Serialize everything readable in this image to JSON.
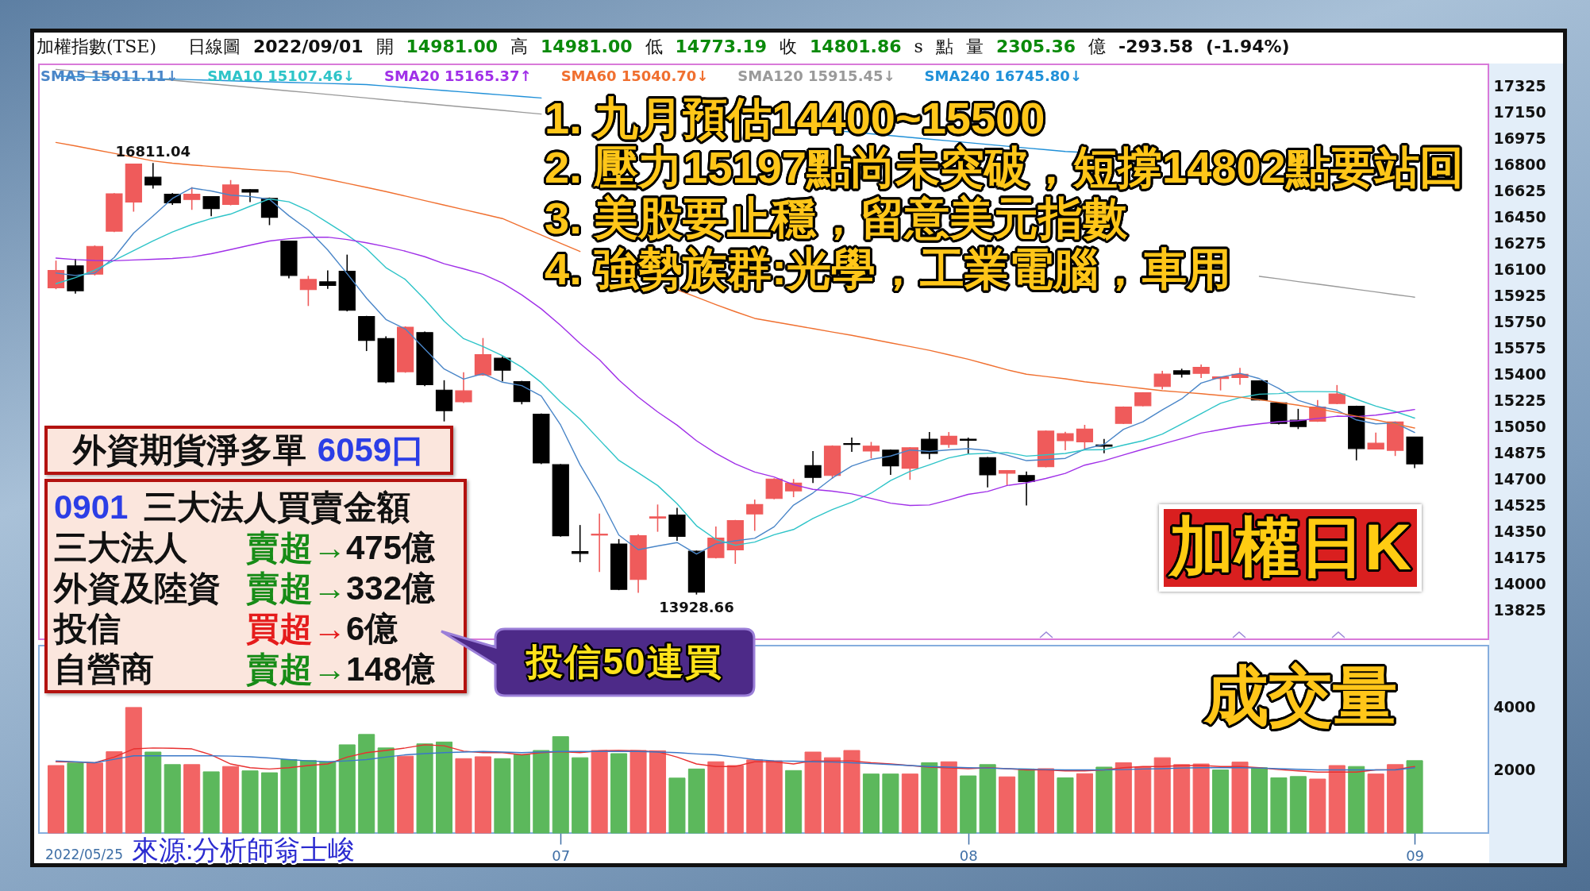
{
  "chart_data": [
    {
      "type": "candlestick",
      "title": "加權指數(TSE)",
      "subtitle": "日線圖 2022/09/01 開 14981.00 高 14981.00 低 14773.19 收 14801.86 s 點 量 2305.36 億 -293.58 (-1.94%)",
      "categories": [
        null,
        null,
        null,
        null,
        null,
        null,
        null,
        null,
        null,
        null,
        null,
        null,
        null,
        null,
        null,
        null,
        null,
        null,
        null,
        null,
        null,
        null,
        null,
        null,
        null,
        null,
        "07",
        null,
        null,
        null,
        null,
        null,
        null,
        null,
        null,
        null,
        null,
        null,
        null,
        null,
        null,
        null,
        null,
        null,
        null,
        null,
        null,
        "08",
        null,
        null,
        null,
        null,
        null,
        null,
        null,
        null,
        null,
        null,
        null,
        null,
        null,
        null,
        null,
        null,
        null,
        null,
        null,
        null,
        null,
        null,
        "09"
      ],
      "ohlc": [
        [
          15977,
          16159,
          15968,
          16093
        ],
        [
          16124,
          16171,
          15939,
          15958
        ],
        [
          16069,
          16260,
          16060,
          16254
        ],
        [
          16356,
          16610,
          16350,
          16605
        ],
        [
          16550,
          16806,
          16486,
          16804
        ],
        [
          16716,
          16811.04,
          16640,
          16664
        ],
        [
          16602,
          16610,
          16531,
          16545
        ],
        [
          16567,
          16650,
          16498,
          16602
        ],
        [
          16586,
          16590,
          16455,
          16507
        ],
        [
          16534,
          16697,
          16528,
          16664
        ],
        [
          16633,
          16636,
          16550,
          16617
        ],
        [
          16574,
          16580,
          16396,
          16448
        ],
        [
          16289,
          16292,
          16041,
          16060
        ],
        [
          15965,
          16057,
          15856,
          16033
        ],
        [
          16017,
          16093,
          15970,
          15993
        ],
        [
          16088,
          16199,
          15820,
          15827
        ],
        [
          15785,
          15790,
          15555,
          15626
        ],
        [
          15638,
          15654,
          15340,
          15349
        ],
        [
          15417,
          15720,
          15410,
          15714
        ],
        [
          15678,
          15685,
          15320,
          15330
        ],
        [
          15294,
          15360,
          15085,
          15157
        ],
        [
          15216,
          15413,
          15208,
          15289
        ],
        [
          15396,
          15642,
          15390,
          15531
        ],
        [
          15507,
          15519,
          15353,
          15427
        ],
        [
          15351,
          15356,
          15199,
          15218
        ],
        [
          15133,
          15138,
          14800,
          14808
        ],
        [
          14796,
          14800,
          14315,
          14322
        ],
        [
          14216,
          14393,
          14145,
          14204
        ],
        [
          14326,
          14469,
          14079,
          14332
        ],
        [
          14266,
          14299,
          13958,
          13963
        ],
        [
          14029,
          14332,
          13940,
          14321
        ],
        [
          14440,
          14530,
          14348,
          14447
        ],
        [
          14460,
          14508,
          14288,
          14317
        ],
        [
          14218,
          14222,
          13928.66,
          13945
        ],
        [
          14176,
          14383,
          14170,
          14306
        ],
        [
          14227,
          14427,
          14134,
          14423
        ],
        [
          14467,
          14563,
          14354,
          14530
        ],
        [
          14570,
          14705,
          14565,
          14700
        ],
        [
          14621,
          14700,
          14579,
          14673
        ],
        [
          14790,
          14887,
          14673,
          14711
        ],
        [
          14724,
          14925,
          14702,
          14920
        ],
        [
          14937,
          14977,
          14882,
          14931
        ],
        [
          14887,
          14948,
          14838,
          14920
        ],
        [
          14893,
          14897,
          14728,
          14788
        ],
        [
          14772,
          14913,
          14695,
          14909
        ],
        [
          14966,
          15014,
          14832,
          14871
        ],
        [
          14931,
          15014,
          14909,
          14986
        ],
        [
          14966,
          14977,
          14871,
          14959
        ],
        [
          14843,
          14847,
          14645,
          14728
        ],
        [
          14739,
          14760,
          14656,
          14757
        ],
        [
          14724,
          14750,
          14524,
          14684
        ],
        [
          14783,
          15025,
          14778,
          15020
        ],
        [
          14956,
          15015,
          14892,
          15003
        ],
        [
          14949,
          15062,
          14892,
          15034
        ],
        [
          14927,
          14968,
          14873,
          14920
        ],
        [
          15072,
          15185,
          15068,
          15181
        ],
        [
          15190,
          15280,
          15186,
          15276
        ],
        [
          15318,
          15423,
          15299,
          15401
        ],
        [
          15423,
          15437,
          15378,
          15401
        ],
        [
          15406,
          15465,
          15375,
          15446
        ],
        [
          15371,
          15385,
          15292,
          15382
        ],
        [
          15378,
          15442,
          15330,
          15399
        ],
        [
          15356,
          15360,
          15225,
          15228
        ],
        [
          15209,
          15212,
          15065,
          15072
        ],
        [
          15093,
          15169,
          15034,
          15051
        ],
        [
          15086,
          15228,
          15082,
          15181
        ],
        [
          15205,
          15328,
          15200,
          15269
        ],
        [
          15186,
          15190,
          14825,
          14904
        ],
        [
          14901,
          15010,
          14897,
          14939
        ],
        [
          14892,
          15085,
          14854,
          15081
        ],
        [
          14981,
          14981,
          14773.19,
          14801.86
        ]
      ],
      "colors": [
        "#ef5b5b",
        "#000000",
        "#ef5b5b",
        "#ef5b5b",
        "#ef5b5b",
        "#000000",
        "#000000",
        "#ef5b5b",
        "#000000",
        "#ef5b5b",
        "#000000",
        "#000000",
        "#000000",
        "#ef5b5b",
        "#000000",
        "#000000",
        "#000000",
        "#000000",
        "#ef5b5b",
        "#000000",
        "#000000",
        "#ef5b5b",
        "#ef5b5b",
        "#000000",
        "#000000",
        "#000000",
        "#000000",
        "#000000",
        "#ef5b5b",
        "#000000",
        "#ef5b5b",
        "#ef5b5b",
        "#000000",
        "#000000",
        "#ef5b5b",
        "#ef5b5b",
        "#ef5b5b",
        "#ef5b5b",
        "#ef5b5b",
        "#000000",
        "#ef5b5b",
        "#000000",
        "#ef5b5b",
        "#000000",
        "#ef5b5b",
        "#000000",
        "#ef5b5b",
        "#000000",
        "#000000",
        "#ef5b5b",
        "#000000",
        "#ef5b5b",
        "#ef5b5b",
        "#ef5b5b",
        "#000000",
        "#ef5b5b",
        "#ef5b5b",
        "#ef5b5b",
        "#000000",
        "#ef5b5b",
        "#ef5b5b",
        "#ef5b5b",
        "#000000",
        "#000000",
        "#000000",
        "#ef5b5b",
        "#ef5b5b",
        "#000000",
        "#ef5b5b",
        "#ef5b5b",
        "#000000"
      ],
      "series": [
        {
          "type": "line",
          "name": "SMA5 15011.11↓",
          "color": "#4a86c8",
          "values": [
            16076,
            16060,
            16075,
            16180,
            16343,
            16457,
            16574,
            16644,
            16624,
            16596,
            16587,
            16568,
            16459,
            16364,
            16230,
            16072,
            15908,
            15766,
            15702,
            15569,
            15435,
            15368,
            15404,
            15347,
            15324,
            15255,
            15061,
            14796,
            14577,
            14326,
            14228,
            14253,
            14276,
            14199,
            14267,
            14288,
            14304,
            14381,
            14526,
            14607,
            14707,
            14787,
            14831,
            14854,
            14894,
            14884,
            14895,
            14903,
            14891,
            14860,
            14823,
            14830,
            14838,
            14900,
            14932,
            15032,
            15083,
            15162,
            15236,
            15341,
            15381,
            15406,
            15371,
            15305,
            15226,
            15186,
            15160,
            15095,
            15069,
            15075,
            15011
          ]
        },
        {
          "type": "line",
          "name": "SMA10 15107.46↓",
          "color": "#2ec4c8",
          "values": [
            16005,
            16045,
            16095,
            16160,
            16225,
            16290,
            16350,
            16400,
            16440,
            16470,
            16522,
            16571,
            16552,
            16494,
            16413,
            16330,
            16238,
            16112,
            16033,
            15900,
            15754,
            15638,
            15585,
            15524,
            15447,
            15345,
            15215,
            15100,
            14962,
            14825,
            14742,
            14657,
            14536,
            14388,
            14297,
            14258,
            14279,
            14328,
            14363,
            14437,
            14497,
            14546,
            14606,
            14690,
            14751,
            14795,
            14841,
            14867,
            14872,
            14877,
            14853,
            14862,
            14871,
            14895,
            14896,
            14927,
            14956,
            15000,
            15068,
            15137,
            15206,
            15244,
            15267,
            15271,
            15284,
            15284,
            15283,
            15233,
            15187,
            15151,
            15107
          ]
        },
        {
          "type": "line",
          "name": "SMA20 15165.37↑",
          "color": "#a030e8",
          "values": [
            16176,
            16166,
            16160,
            16158,
            16163,
            16168,
            16173,
            16183,
            16205,
            16233,
            16262,
            16290,
            16305,
            16315,
            16316,
            16300,
            16278,
            16252,
            16222,
            16185,
            16138,
            16104,
            16068,
            16009,
            15930,
            15837,
            15726,
            15606,
            15497,
            15362,
            15248,
            15148,
            15060,
            14956,
            14872,
            14801,
            14747,
            14714,
            14662,
            14631,
            14619,
            14601,
            14571,
            14539,
            14524,
            14527,
            14560,
            14598,
            14617,
            14657,
            14675,
            14704,
            14738,
            14793,
            14823,
            14861,
            14899,
            14934,
            14970,
            15007,
            15030,
            15053,
            15069,
            15083,
            15090,
            15105,
            15120,
            15117,
            15127,
            15144,
            15165
          ]
        },
        {
          "type": "line",
          "name": "SMA60 15040.70↓",
          "color": "#f07030",
          "values": [
            16948,
            16925,
            16900,
            16875,
            16850,
            16825,
            16810,
            16798,
            16788,
            16778,
            16768,
            16760,
            16752,
            16728,
            16702,
            16675,
            16648,
            16620,
            16590,
            16560,
            16530,
            16500,
            16470,
            16440,
            16385,
            16330,
            16275,
            16220,
            null,
            null,
            null,
            null,
            15965,
            15915,
            15865,
            15818,
            15773,
            15750,
            15728,
            15705,
            15682,
            15660,
            15635,
            15610,
            15585,
            15560,
            15530,
            15500,
            15465,
            15430,
            15400,
            15385,
            15370,
            15350,
            15335,
            15320,
            15305,
            15290,
            15280,
            15270,
            15258,
            15247,
            15230,
            15212,
            15193,
            15170,
            15145,
            15120,
            15095,
            15068,
            15041
          ]
        },
        {
          "type": "line",
          "name": "SMA120 15915.45↓",
          "color": "#9a9a9a",
          "values": [
            17436,
            17424,
            17412,
            17400,
            null,
            17376,
            17364,
            17352,
            17340,
            17328,
            17316,
            17304,
            17292,
            17281,
            17269,
            17257,
            17245,
            17233,
            17221,
            17209,
            17197,
            17185,
            17174,
            17162,
            17150,
            17138,
            null,
            null,
            null,
            null,
            null,
            null,
            null,
            null,
            null,
            null,
            null,
            null,
            null,
            null,
            null,
            null,
            null,
            null,
            null,
            null,
            null,
            null,
            null,
            null,
            null,
            null,
            null,
            null,
            null,
            null,
            null,
            null,
            null,
            null,
            null,
            null,
            16054,
            16037,
            16019,
            16002,
            15985,
            15967,
            15950,
            15932,
            15915
          ]
        },
        {
          "type": "line",
          "name": "SMA240 16745.80↓",
          "color": "#2090d8",
          "values": [
            17392,
            17388,
            17385,
            17381,
            17378,
            17374,
            17371,
            17367,
            17364,
            17360,
            17356,
            17353,
            17349,
            17346,
            17342,
            17339,
            17335,
            17325,
            17315,
            17305,
            17295,
            17285,
            17275,
            17265,
            17255,
            17245,
            null,
            null,
            null,
            null,
            null,
            null,
            null,
            null,
            null,
            null,
            null,
            null,
            null,
            null,
            17029,
            17018,
            17006,
            16994,
            16982,
            16970,
            16959,
            16947,
            16935,
            16923,
            16911,
            16900,
            16888,
            16881,
            null,
            null,
            null,
            null,
            null,
            null,
            null,
            null,
            null,
            null,
            null,
            null,
            null,
            null,
            null,
            null,
            null
          ]
        }
      ],
      "annotations": [
        {
          "text": "16811.04",
          "y": 16811.04
        },
        {
          "text": "13928.66",
          "y": 13928.66
        },
        "1. 九月預估14400~15500",
        "2. 壓力15197點尚未突破，短撐14802點要站回",
        "3. 美股要止穩，留意美元指數",
        "4. 強勢族群:光學，工業電腦，車用",
        "外資期貨淨多單",
        "6059口",
        "0901",
        "三大法人買賣金額",
        "三大法人",
        "賣超→",
        "475億",
        "外資及陸資",
        "賣超→",
        "332億",
        "投信",
        "買超→",
        "6億",
        "自營商",
        "賣超→",
        "148億",
        "投信50連買",
        "加權日K"
      ],
      "ylim": [
        13630,
        17470
      ],
      "yticks": [
        13825,
        14000,
        14175,
        14350,
        14525,
        14700,
        14875,
        15050,
        15225,
        15400,
        15575,
        15750,
        15925,
        16100,
        16275,
        16450,
        16625,
        16800,
        16975,
        17150,
        17325
      ],
      "legend": "top left",
      "tick_labels": "y"
    },
    {
      "type": "bar",
      "categories": [
        null,
        null,
        null,
        null,
        null,
        null,
        null,
        null,
        null,
        null,
        null,
        null,
        null,
        null,
        null,
        null,
        null,
        null,
        null,
        null,
        null,
        null,
        null,
        null,
        null,
        null,
        "07",
        null,
        null,
        null,
        null,
        null,
        null,
        null,
        null,
        null,
        null,
        null,
        null,
        null,
        null,
        null,
        null,
        null,
        null,
        null,
        null,
        "08",
        null,
        null,
        null,
        null,
        null,
        null,
        null,
        null,
        null,
        null,
        null,
        null,
        null,
        null,
        null,
        null,
        null,
        null,
        null,
        null,
        null,
        null,
        "09"
      ],
      "series": [
        {
          "colors": [
            "#f26464",
            "#5cb85c",
            "#f26464",
            "#f26464",
            "#f26464",
            "#5cb85c",
            "#5cb85c",
            "#f26464",
            "#5cb85c",
            "#f26464",
            "#5cb85c",
            "#5cb85c",
            "#5cb85c",
            "#5cb85c",
            "#5cb85c",
            "#5cb85c",
            "#5cb85c",
            "#5cb85c",
            "#f26464",
            "#5cb85c",
            "#5cb85c",
            "#f26464",
            "#f26464",
            "#5cb85c",
            "#5cb85c",
            "#5cb85c",
            "#5cb85c",
            "#5cb85c",
            "#f26464",
            "#5cb85c",
            "#f26464",
            "#f26464",
            "#5cb85c",
            "#5cb85c",
            "#f26464",
            "#f26464",
            "#f26464",
            "#f26464",
            "#5cb85c",
            "#f26464",
            "#f26464",
            "#f26464",
            "#5cb85c",
            "#5cb85c",
            "#f26464",
            "#5cb85c",
            "#f26464",
            "#5cb85c",
            "#5cb85c",
            "#f26464",
            "#5cb85c",
            "#f26464",
            "#5cb85c",
            "#f26464",
            "#5cb85c",
            "#f26464",
            "#f26464",
            "#f26464",
            "#f26464",
            "#f26464",
            "#5cb85c",
            "#f26464",
            "#5cb85c",
            "#5cb85c",
            "#5cb85c",
            "#f26464",
            "#f26464",
            "#5cb85c",
            "#f26464",
            "#f26464",
            "#5cb85c"
          ],
          "values": [
            2150,
            2230,
            2230,
            2590,
            4000,
            2580,
            2180,
            2180,
            1950,
            2120,
            1980,
            1920,
            2340,
            2310,
            2270,
            2810,
            3140,
            2710,
            2450,
            2840,
            2900,
            2370,
            2430,
            2370,
            2500,
            2630,
            3070,
            2400,
            2630,
            2530,
            2630,
            2620,
            1750,
            2040,
            2270,
            2150,
            2330,
            2300,
            1990,
            2580,
            2400,
            2630,
            1880,
            1880,
            1880,
            2240,
            2270,
            1820,
            2180,
            1790,
            2040,
            2050,
            1760,
            1890,
            2100,
            2240,
            2100,
            2400,
            2180,
            2200,
            2010,
            2260,
            2080,
            1760,
            1800,
            1720,
            2150,
            2120,
            1880,
            2180,
            2305.36
          ]
        },
        {
          "type": "line",
          "color": "#e83030",
          "values": [
            2270,
            2260,
            2240,
            2420,
            2680,
            2710,
            2700,
            2680,
            2490,
            2200,
            2080,
            2040,
            2080,
            2150,
            2200,
            2420,
            2560,
            2630,
            2710,
            2810,
            2780,
            2610,
            2560,
            2560,
            2490,
            2560,
            2590,
            2560,
            2620,
            2630,
            2620,
            2590,
            2420,
            2200,
            2120,
            2120,
            2270,
            2270,
            2200,
            2300,
            2300,
            2300,
            2240,
            2200,
            2150,
            2100,
            2070,
            2050,
            2080,
            2050,
            2010,
            2010,
            1980,
            1980,
            2010,
            2080,
            2120,
            2120,
            2150,
            2150,
            2120,
            2120,
            2080,
            2020,
            1980,
            1940,
            1940,
            1940,
            2010,
            2020,
            2120
          ]
        },
        {
          "type": "line",
          "color": "#3a78c8",
          "values": [
            2300,
            2270,
            2240,
            2350,
            2460,
            2460,
            2460,
            2460,
            2460,
            2450,
            2430,
            2390,
            2340,
            2300,
            2270,
            2300,
            2340,
            2420,
            2490,
            2530,
            2560,
            2580,
            2600,
            2580,
            2560,
            2580,
            2600,
            2600,
            2600,
            2600,
            2600,
            2580,
            2560,
            2520,
            2490,
            2420,
            2340,
            2300,
            2290,
            2270,
            2260,
            2240,
            2210,
            2180,
            2150,
            2120,
            2100,
            2080,
            2070,
            2050,
            2040,
            2020,
            2010,
            2010,
            2010,
            2020,
            2040,
            2050,
            2070,
            2080,
            2080,
            2080,
            2070,
            2050,
            2030,
            2010,
            2010,
            2010,
            2010,
            2010,
            2080
          ]
        }
      ],
      "annotations": [
        "成交量",
        "2022/05/25",
        "來源:分析師翁士峻"
      ],
      "ylim": [
        0,
        5970
      ],
      "yticks": [
        2000,
        4000
      ]
    }
  ]
}
